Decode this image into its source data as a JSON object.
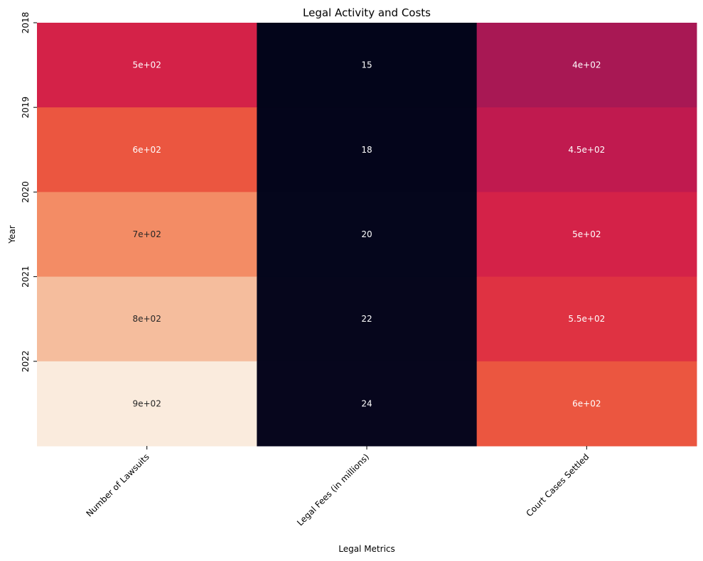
{
  "chart_data": {
    "type": "heatmap",
    "title": "Legal Activity and Costs",
    "xlabel": "Legal Metrics",
    "ylabel": "Year",
    "x_categories": [
      "Number of Lawsuits",
      "Legal Fees (in millions)",
      "Court Cases Settled"
    ],
    "y_categories": [
      "2018",
      "2019",
      "2020",
      "2021",
      "2022"
    ],
    "values": [
      [
        500,
        15,
        400
      ],
      [
        600,
        18,
        450
      ],
      [
        700,
        20,
        500
      ],
      [
        800,
        22,
        550
      ],
      [
        900,
        24,
        600
      ]
    ],
    "annotations": [
      [
        "5e+02",
        "15",
        "4e+02"
      ],
      [
        "6e+02",
        "18",
        "4.5e+02"
      ],
      [
        "7e+02",
        "20",
        "5e+02"
      ],
      [
        "8e+02",
        "22",
        "5.5e+02"
      ],
      [
        "9e+02",
        "24",
        "6e+02"
      ]
    ],
    "colormap": "rocket",
    "colorbar": false,
    "value_range": [
      15,
      900
    ]
  }
}
